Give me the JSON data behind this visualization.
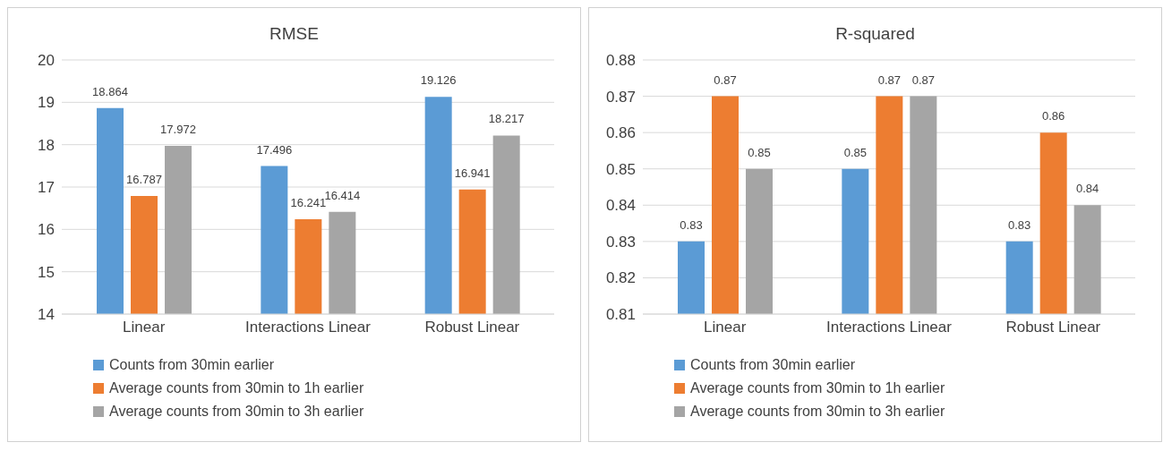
{
  "chart_data": [
    {
      "type": "bar",
      "title": "RMSE",
      "categories": [
        "Linear",
        "Interactions Linear",
        "Robust Linear"
      ],
      "series": [
        {
          "name": "Counts from 30min earlier",
          "color": "#5b9bd5",
          "values": [
            18.864,
            17.496,
            19.126
          ]
        },
        {
          "name": "Average counts from 30min to 1h earlier",
          "color": "#ed7d31",
          "values": [
            16.787,
            16.241,
            16.941
          ]
        },
        {
          "name": "Average counts from 30min to 3h earlier",
          "color": "#a5a5a5",
          "values": [
            17.972,
            16.414,
            18.217
          ]
        }
      ],
      "ylim": [
        14,
        20
      ],
      "yticks": [
        14,
        15,
        16,
        17,
        18,
        19,
        20
      ],
      "grid": "y",
      "legend": "bottom",
      "data_labels": true
    },
    {
      "type": "bar",
      "title": "R-squared",
      "categories": [
        "Linear",
        "Interactions Linear",
        "Robust Linear"
      ],
      "series": [
        {
          "name": "Counts from 30min earlier",
          "color": "#5b9bd5",
          "values": [
            0.83,
            0.85,
            0.83
          ]
        },
        {
          "name": "Average counts from 30min to 1h earlier",
          "color": "#ed7d31",
          "values": [
            0.87,
            0.87,
            0.86
          ]
        },
        {
          "name": "Average counts from 30min to 3h earlier",
          "color": "#a5a5a5",
          "values": [
            0.85,
            0.87,
            0.84
          ]
        }
      ],
      "ylim": [
        0.81,
        0.88
      ],
      "yticks": [
        0.81,
        0.82,
        0.83,
        0.84,
        0.85,
        0.86,
        0.87,
        0.88
      ],
      "grid": "y",
      "legend": "bottom",
      "data_labels": true
    }
  ]
}
